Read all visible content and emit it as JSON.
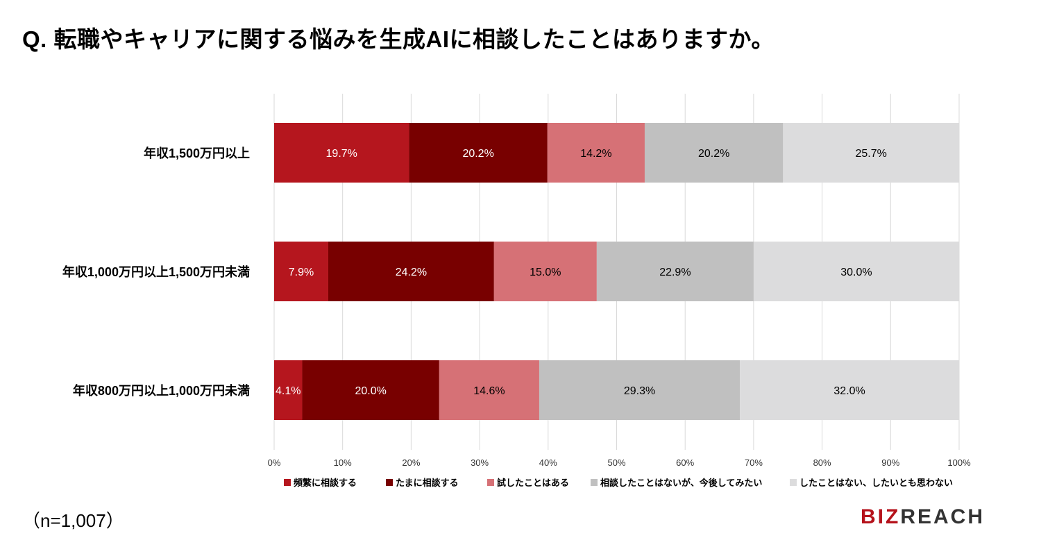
{
  "header": {
    "title": "Q.  転職やキャリアに関する悩みを生成AIに相談したことはありますか。"
  },
  "footer": {
    "note": "（n=1,007）",
    "logo_red": "BIZ",
    "logo_dark": "REACH"
  },
  "chart_data": {
    "type": "bar",
    "orientation": "horizontal",
    "stacked": true,
    "percent": true,
    "categories": [
      "年収1,500万円以上",
      "年収1,000万円以上1,500万円未満",
      "年収800万円以上1,000万円未満"
    ],
    "series": [
      {
        "name": "頻繁に相談する",
        "color": "#b5161e",
        "label_color": "#ffffff",
        "values": [
          19.7,
          7.9,
          4.1
        ]
      },
      {
        "name": "たまに相談する",
        "color": "#780000",
        "label_color": "#ffffff",
        "values": [
          20.2,
          24.2,
          20.0
        ]
      },
      {
        "name": "試したことはある",
        "color": "#d67176",
        "label_color": "#000000",
        "values": [
          14.2,
          15.0,
          14.6
        ]
      },
      {
        "name": "相談したことはないが、今後してみたい",
        "color": "#c0c0c0",
        "label_color": "#000000",
        "values": [
          20.2,
          22.9,
          29.3
        ]
      },
      {
        "name": "したことはない、したいとも思わない",
        "color": "#dcdcdd",
        "label_color": "#000000",
        "values": [
          25.7,
          30.0,
          32.0
        ]
      }
    ],
    "xlim": [
      0,
      100
    ],
    "xticks": [
      "0%",
      "10%",
      "20%",
      "30%",
      "40%",
      "50%",
      "60%",
      "70%",
      "80%",
      "90%",
      "100%"
    ],
    "grid": true,
    "legend_position": "bottom"
  }
}
